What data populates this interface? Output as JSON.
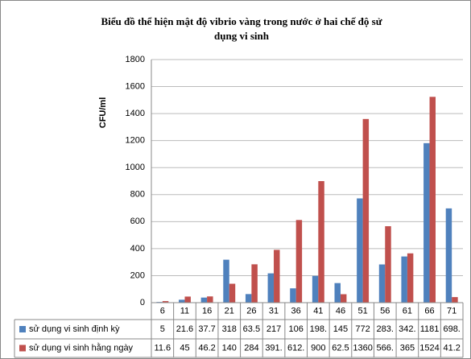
{
  "chart_data": {
    "type": "bar",
    "title": [
      "Biểu đồ thể hiện mật độ vibrio vàng trong nước ở hai chế độ sử",
      "dụng vi sinh"
    ],
    "y_label": "CFU/ml",
    "categories": [
      "6",
      "11",
      "16",
      "21",
      "26",
      "31",
      "36",
      "41",
      "46",
      "51",
      "56",
      "61",
      "66",
      "71"
    ],
    "series": [
      {
        "name": "sử dụng vi sinh định kỳ",
        "color": "#4f81bd",
        "values": [
          5,
          21.6,
          37.7,
          318,
          63.5,
          217,
          106,
          198,
          145,
          772,
          283,
          342,
          1181,
          698
        ],
        "value_labels": [
          "5",
          "21.6",
          "37.7",
          "318",
          "63.5",
          "217",
          "106",
          "198.",
          "145",
          "772",
          "283.",
          "342.",
          "1181",
          "698."
        ]
      },
      {
        "name": "sử dụng vi sinh hằng ngày",
        "color": "#c0504d",
        "values": [
          11.6,
          45,
          46.2,
          140,
          284,
          391,
          612,
          900,
          62.5,
          1360,
          566,
          365,
          1524,
          41.2
        ],
        "value_labels": [
          "11.6",
          "45",
          "46.2",
          "140",
          "284",
          "391.",
          "612.",
          "900",
          "62.5",
          "1360",
          "566.",
          "365",
          "1524",
          "41.2"
        ]
      }
    ],
    "ylim": [
      0,
      1800
    ],
    "yticks": [
      0,
      200,
      400,
      600,
      800,
      1000,
      1200,
      1400,
      1600,
      1800
    ],
    "grid": true
  }
}
